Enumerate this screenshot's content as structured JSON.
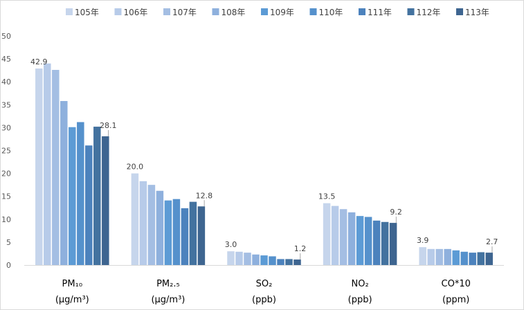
{
  "chart_data": {
    "type": "bar",
    "title": "",
    "xlabel": "",
    "ylabel": "",
    "ylim": [
      0,
      50
    ],
    "yticks": [
      0,
      5,
      10,
      15,
      20,
      25,
      30,
      35,
      40,
      45,
      50
    ],
    "grid": false,
    "legend_position": "top",
    "categories": [
      {
        "line1": "PM₁₀",
        "line2": "(μg/m³)"
      },
      {
        "line1": "PM₂.₅",
        "line2": "(μg/m³)"
      },
      {
        "line1": "SO₂",
        "line2": "(ppb)"
      },
      {
        "line1": "NO₂",
        "line2": "(ppb)"
      },
      {
        "line1": "CO*10",
        "line2": "(ppm)"
      }
    ],
    "series": [
      {
        "name": "105年",
        "color": "#c6d5ec",
        "values": [
          42.9,
          20.0,
          3.0,
          13.5,
          3.9
        ]
      },
      {
        "name": "106年",
        "color": "#b7cbe9",
        "values": [
          44.0,
          18.3,
          2.9,
          12.9,
          3.5
        ]
      },
      {
        "name": "107年",
        "color": "#a4bee3",
        "values": [
          42.6,
          17.5,
          2.7,
          12.2,
          3.5
        ]
      },
      {
        "name": "108年",
        "color": "#8eb0dd",
        "values": [
          35.8,
          16.2,
          2.3,
          11.5,
          3.5
        ]
      },
      {
        "name": "109年",
        "color": "#5c9bd5",
        "values": [
          30.1,
          14.1,
          2.1,
          10.7,
          3.2
        ]
      },
      {
        "name": "110年",
        "color": "#5591cc",
        "values": [
          31.2,
          14.4,
          1.9,
          10.5,
          2.9
        ]
      },
      {
        "name": "111年",
        "color": "#4c82bd",
        "values": [
          26.1,
          12.4,
          1.3,
          9.7,
          2.7
        ]
      },
      {
        "name": "112年",
        "color": "#43729f",
        "values": [
          30.2,
          13.8,
          1.3,
          9.4,
          2.8
        ]
      },
      {
        "name": "113年",
        "color": "#3e6590",
        "values": [
          28.1,
          12.8,
          1.2,
          9.2,
          2.7
        ]
      }
    ],
    "data_labels": [
      {
        "category_index": 0,
        "series_index": 0,
        "text": "42.9"
      },
      {
        "category_index": 0,
        "series_index": 8,
        "text": "28.1"
      },
      {
        "category_index": 1,
        "series_index": 0,
        "text": "20.0"
      },
      {
        "category_index": 1,
        "series_index": 8,
        "text": "12.8"
      },
      {
        "category_index": 2,
        "series_index": 0,
        "text": "3.0"
      },
      {
        "category_index": 2,
        "series_index": 8,
        "text": "1.2"
      },
      {
        "category_index": 3,
        "series_index": 0,
        "text": "13.5"
      },
      {
        "category_index": 3,
        "series_index": 8,
        "text": "9.2"
      },
      {
        "category_index": 4,
        "series_index": 0,
        "text": "3.9"
      },
      {
        "category_index": 4,
        "series_index": 8,
        "text": "2.7"
      }
    ]
  }
}
